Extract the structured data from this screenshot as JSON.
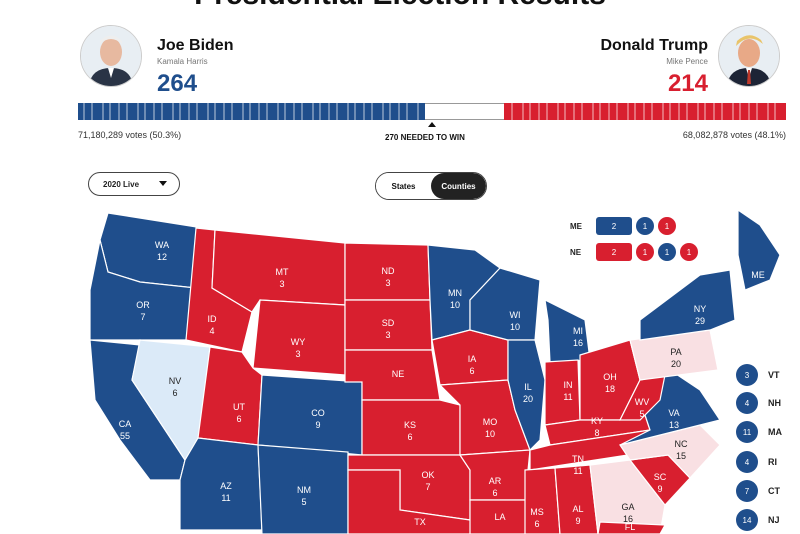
{
  "page": {
    "title": "Presidential Election Results"
  },
  "colors": {
    "dem": "#1f4e8c",
    "rep": "#d81f2f",
    "dem_light": "#dbeaf8",
    "rep_light": "#f9e0e3"
  },
  "candidates": {
    "dem": {
      "name": "Joe Biden",
      "running_mate": "Kamala Harris",
      "electoral_votes": "264",
      "votes": "71,180,289 votes (50.3%)",
      "photo_icon": "portrait-icon"
    },
    "rep": {
      "name": "Donald Trump",
      "running_mate": "Mike Pence",
      "electoral_votes": "214",
      "votes": "68,082,878 votes (48.1%)",
      "photo_icon": "portrait-icon"
    }
  },
  "bar": {
    "dem_ev": 264,
    "rep_ev": 214,
    "total_ev": 538,
    "needed_label": "270 NEEDED TO WIN"
  },
  "controls": {
    "year_select": "2020 Live",
    "view_states": "States",
    "view_counties": "Counties",
    "active_view": "Counties"
  },
  "split_states": {
    "me": {
      "label": "ME",
      "statewide": "2",
      "districts": [
        "1",
        "1"
      ],
      "district_colors": [
        "dem",
        "rep"
      ]
    },
    "ne": {
      "label": "NE",
      "statewide": "2",
      "districts": [
        "1",
        "1",
        "1"
      ],
      "district_colors": [
        "rep",
        "dem",
        "rep"
      ]
    }
  },
  "small_states": [
    {
      "abbr": "VT",
      "ev": "3"
    },
    {
      "abbr": "NH",
      "ev": "4"
    },
    {
      "abbr": "MA",
      "ev": "11"
    },
    {
      "abbr": "RI",
      "ev": "4"
    },
    {
      "abbr": "CT",
      "ev": "7"
    },
    {
      "abbr": "NJ",
      "ev": "14"
    }
  ],
  "states": [
    {
      "abbr": "WA",
      "ev": "12",
      "winner": "dem"
    },
    {
      "abbr": "OR",
      "ev": "7",
      "winner": "dem"
    },
    {
      "abbr": "CA",
      "ev": "55",
      "winner": "dem"
    },
    {
      "abbr": "NV",
      "ev": "6",
      "winner": "dem_light"
    },
    {
      "abbr": "ID",
      "ev": "4",
      "winner": "rep"
    },
    {
      "abbr": "MT",
      "ev": "3",
      "winner": "rep"
    },
    {
      "abbr": "WY",
      "ev": "3",
      "winner": "rep"
    },
    {
      "abbr": "UT",
      "ev": "6",
      "winner": "rep"
    },
    {
      "abbr": "AZ",
      "ev": "11",
      "winner": "dem"
    },
    {
      "abbr": "CO",
      "ev": "9",
      "winner": "dem"
    },
    {
      "abbr": "NM",
      "ev": "5",
      "winner": "dem"
    },
    {
      "abbr": "ND",
      "ev": "3",
      "winner": "rep"
    },
    {
      "abbr": "SD",
      "ev": "3",
      "winner": "rep"
    },
    {
      "abbr": "NE",
      "ev": "",
      "winner": "rep"
    },
    {
      "abbr": "KS",
      "ev": "6",
      "winner": "rep"
    },
    {
      "abbr": "OK",
      "ev": "7",
      "winner": "rep"
    },
    {
      "abbr": "TX",
      "ev": "",
      "winner": "rep"
    },
    {
      "abbr": "MN",
      "ev": "10",
      "winner": "dem"
    },
    {
      "abbr": "IA",
      "ev": "6",
      "winner": "rep"
    },
    {
      "abbr": "MO",
      "ev": "10",
      "winner": "rep"
    },
    {
      "abbr": "AR",
      "ev": "6",
      "winner": "rep"
    },
    {
      "abbr": "LA",
      "ev": "",
      "winner": "rep"
    },
    {
      "abbr": "WI",
      "ev": "10",
      "winner": "dem"
    },
    {
      "abbr": "IL",
      "ev": "20",
      "winner": "dem"
    },
    {
      "abbr": "MI",
      "ev": "16",
      "winner": "dem"
    },
    {
      "abbr": "IN",
      "ev": "11",
      "winner": "rep"
    },
    {
      "abbr": "OH",
      "ev": "18",
      "winner": "rep"
    },
    {
      "abbr": "KY",
      "ev": "8",
      "winner": "rep"
    },
    {
      "abbr": "TN",
      "ev": "11",
      "winner": "rep"
    },
    {
      "abbr": "MS",
      "ev": "6",
      "winner": "rep"
    },
    {
      "abbr": "AL",
      "ev": "9",
      "winner": "rep"
    },
    {
      "abbr": "GA",
      "ev": "16",
      "winner": "rep_light"
    },
    {
      "abbr": "SC",
      "ev": "9",
      "winner": "rep"
    },
    {
      "abbr": "NC",
      "ev": "15",
      "winner": "rep_light"
    },
    {
      "abbr": "VA",
      "ev": "13",
      "winner": "dem"
    },
    {
      "abbr": "WV",
      "ev": "5",
      "winner": "rep"
    },
    {
      "abbr": "PA",
      "ev": "20",
      "winner": "rep_light"
    },
    {
      "abbr": "NY",
      "ev": "29",
      "winner": "dem"
    },
    {
      "abbr": "ME",
      "ev": "",
      "winner": "dem"
    },
    {
      "abbr": "FL",
      "ev": "",
      "winner": "rep"
    }
  ]
}
